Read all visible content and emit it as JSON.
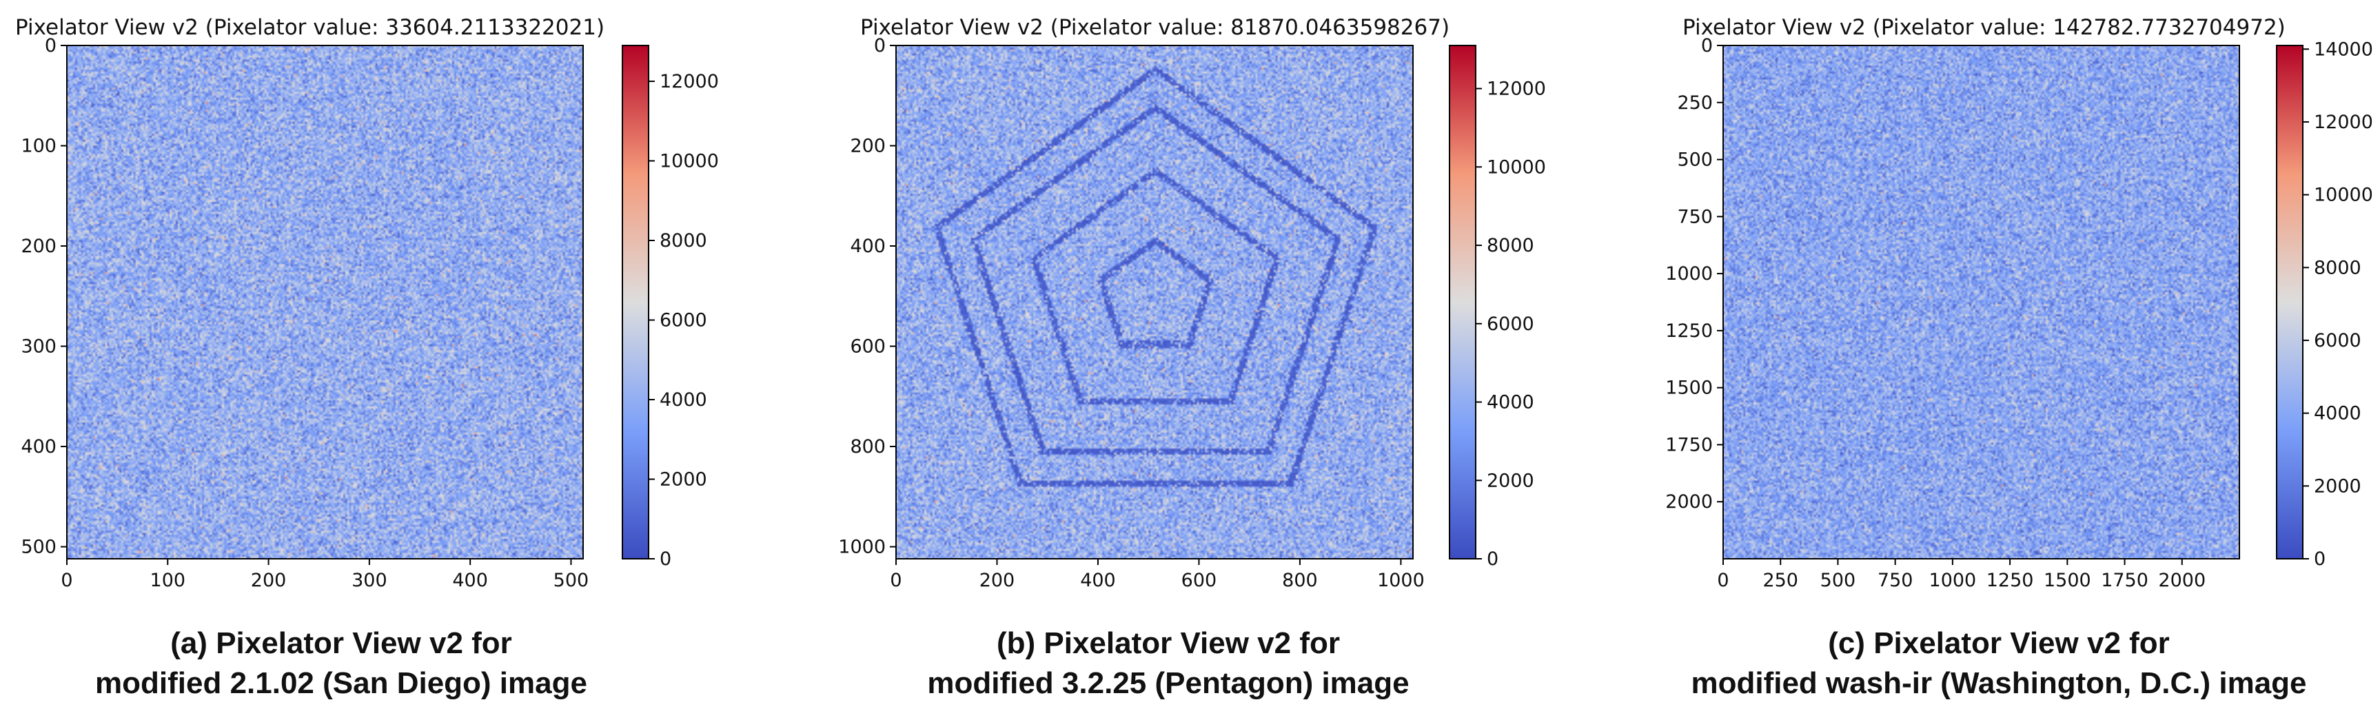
{
  "chart_data": [
    {
      "type": "heatmap",
      "title": "Pixelator View v2 (Pixelator value: 33604.2113322021)",
      "xlim": [
        0,
        512
      ],
      "ylim": [
        512,
        0
      ],
      "x_ticks": [
        0,
        100,
        200,
        300,
        400,
        500
      ],
      "y_ticks": [
        0,
        100,
        200,
        300,
        400,
        500
      ],
      "colorbar": {
        "colormap": "coolwarm",
        "range": [
          0,
          12900
        ],
        "ticks": [
          0,
          2000,
          4000,
          6000,
          8000,
          10000,
          12000
        ]
      },
      "pattern": "random noise, mean ≈ 3500–4500, no visible structure",
      "caption": [
        "(a) Pixelator View v2  for",
        "modified 2.1.02 (San Diego) image"
      ]
    },
    {
      "type": "heatmap",
      "title": "Pixelator View v2 (Pixelator value: 81870.0463598267)",
      "xlim": [
        0,
        1024
      ],
      "ylim": [
        1024,
        0
      ],
      "x_ticks": [
        0,
        200,
        400,
        600,
        800,
        1000
      ],
      "y_ticks": [
        0,
        200,
        400,
        600,
        800,
        1000
      ],
      "colorbar": {
        "colormap": "coolwarm",
        "range": [
          0,
          13100
        ],
        "ticks": [
          0,
          2000,
          4000,
          6000,
          8000,
          10000,
          12000
        ]
      },
      "pattern": "random noise with faint low-value concentric pentagon edges centred near (510, 500)",
      "caption": [
        "(b) Pixelator View v2  for",
        "modified 3.2.25 (Pentagon) image"
      ]
    },
    {
      "type": "heatmap",
      "title": "Pixelator View v2 (Pixelator value: 142782.7732704972)",
      "xlim": [
        0,
        2250
      ],
      "ylim": [
        2250,
        0
      ],
      "x_ticks": [
        0,
        250,
        500,
        750,
        1000,
        1250,
        1500,
        1750,
        2000
      ],
      "y_ticks": [
        0,
        250,
        500,
        750,
        1000,
        1250,
        1500,
        1750,
        2000
      ],
      "colorbar": {
        "colormap": "coolwarm",
        "range": [
          0,
          14100
        ],
        "ticks": [
          0,
          2000,
          4000,
          6000,
          8000,
          10000,
          12000,
          14000
        ]
      },
      "pattern": "fine random noise, mean ≈ 3000–4000, no visible structure",
      "caption": [
        "(c) Pixelator View v2  for",
        "modified wash-ir (Washington, D.C.) image"
      ]
    }
  ]
}
